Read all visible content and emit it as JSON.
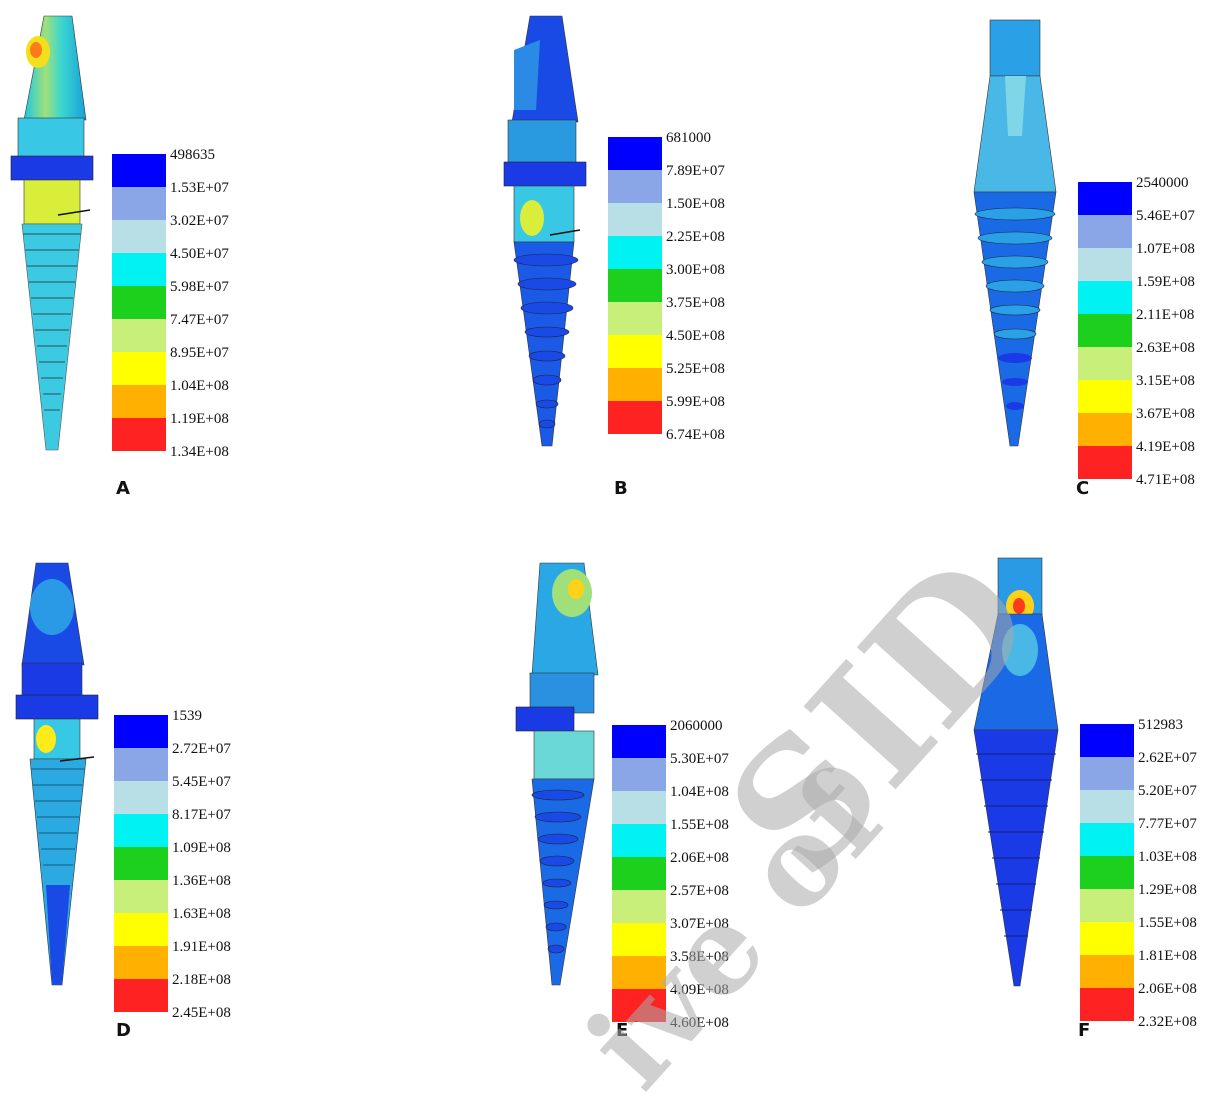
{
  "colors": {
    "scale": [
      "#0000ff",
      "#8aa6e6",
      "#b9dfe6",
      "#00f2f2",
      "#1ed01e",
      "#c7ef7a",
      "#ffff00",
      "#ffb000",
      "#ff2222"
    ]
  },
  "panels": [
    {
      "letter": "A",
      "legend": [
        "498635",
        "1.53E+07",
        "3.02E+07",
        "4.50E+07",
        "5.98E+07",
        "7.47E+07",
        "8.95E+07",
        "1.04E+08",
        "1.19E+08",
        "1.34E+08"
      ]
    },
    {
      "letter": "B",
      "legend": [
        "681000",
        "7.89E+07",
        "1.50E+08",
        "2.25E+08",
        "3.00E+08",
        "3.75E+08",
        "4.50E+08",
        "5.25E+08",
        "5.99E+08",
        "6.74E+08"
      ]
    },
    {
      "letter": "C",
      "legend": [
        "2540000",
        "5.46E+07",
        "1.07E+08",
        "1.59E+08",
        "2.11E+08",
        "2.63E+08",
        "3.15E+08",
        "3.67E+08",
        "4.19E+08",
        "4.71E+08"
      ]
    },
    {
      "letter": "D",
      "legend": [
        "1539",
        "2.72E+07",
        "5.45E+07",
        "8.17E+07",
        "1.09E+08",
        "1.36E+08",
        "1.63E+08",
        "1.91E+08",
        "2.18E+08",
        "2.45E+08"
      ]
    },
    {
      "letter": "E",
      "legend": [
        "2060000",
        "5.30E+07",
        "1.04E+08",
        "1.55E+08",
        "2.06E+08",
        "2.57E+08",
        "3.07E+08",
        "3.58E+08",
        "4.09E+08",
        "4.60E+08"
      ]
    },
    {
      "letter": "F",
      "legend": [
        "512983",
        "2.62E+07",
        "5.20E+07",
        "7.77E+07",
        "1.03E+08",
        "1.29E+08",
        "1.55E+08",
        "1.81E+08",
        "2.06E+08",
        "2.32E+08"
      ]
    }
  ],
  "watermark": {
    "line1": "SID",
    "line2": "ive of"
  }
}
